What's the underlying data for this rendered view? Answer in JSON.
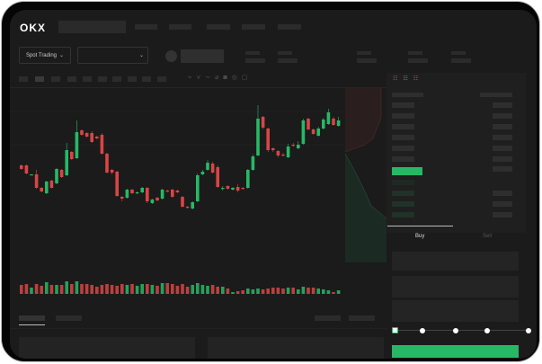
{
  "header": {
    "logo": "OKX"
  },
  "market": {
    "mode_label": "Spot Trading"
  },
  "trade": {
    "buy_tab": "Buy",
    "sell_tab": "Sell"
  },
  "colors": {
    "up": "#27b866",
    "down": "#d94545",
    "background": "#1b1b1b",
    "accent": "#27b866"
  },
  "icons": [
    "chevron-down-icon",
    "orderbook-both-icon",
    "orderbook-bids-icon",
    "orderbook-asks-icon",
    "draw-line-icon",
    "ruler-icon",
    "camera-icon",
    "settings-icon",
    "fullscreen-icon"
  ],
  "chart_data": {
    "type": "candlestick",
    "candles": [
      [
        68,
        64,
        69,
        63
      ],
      [
        68,
        59,
        69,
        58
      ],
      [
        57,
        58,
        58,
        57
      ],
      [
        58,
        43,
        63,
        42
      ],
      [
        43,
        39,
        44,
        38
      ],
      [
        37,
        50,
        51,
        36
      ],
      [
        51,
        43,
        52,
        42
      ],
      [
        48,
        64,
        65,
        47
      ],
      [
        63,
        55,
        64,
        54
      ],
      [
        57,
        85,
        93,
        56
      ],
      [
        83,
        75,
        84,
        74
      ],
      [
        76,
        105,
        118,
        75
      ],
      [
        107,
        102,
        108,
        101
      ],
      [
        104,
        100,
        105,
        99
      ],
      [
        104,
        94,
        106,
        93
      ],
      [
        100,
        98,
        101,
        97
      ],
      [
        102,
        81,
        104,
        80
      ],
      [
        81,
        60,
        82,
        59
      ],
      [
        63,
        60,
        64,
        58
      ],
      [
        61,
        34,
        62,
        33
      ],
      [
        33,
        31,
        34,
        28
      ],
      [
        32,
        41,
        42,
        31
      ],
      [
        41,
        37,
        42,
        36
      ],
      [
        37,
        38,
        39,
        36
      ],
      [
        38,
        43,
        44,
        37
      ],
      [
        43,
        28,
        44,
        26
      ],
      [
        26,
        30,
        31,
        25
      ],
      [
        32,
        29,
        33,
        28
      ],
      [
        31,
        41,
        42,
        30
      ],
      [
        40,
        39,
        41,
        38
      ],
      [
        41,
        33,
        42,
        32
      ],
      [
        40,
        38,
        41,
        37
      ],
      [
        33,
        22,
        34,
        21
      ],
      [
        22,
        21,
        23,
        20
      ],
      [
        20,
        27,
        28,
        19
      ],
      [
        28,
        57,
        59,
        27
      ],
      [
        58,
        61,
        63,
        57
      ],
      [
        63,
        71,
        74,
        62
      ],
      [
        70,
        60,
        72,
        59
      ],
      [
        66,
        44,
        68,
        43
      ],
      [
        42,
        43,
        45,
        40
      ],
      [
        45,
        42,
        46,
        41
      ],
      [
        41,
        43,
        44,
        40
      ],
      [
        44,
        40,
        47,
        38
      ],
      [
        43,
        42,
        44,
        41
      ],
      [
        43,
        63,
        64,
        42
      ],
      [
        63,
        78,
        80,
        62
      ],
      [
        79,
        120,
        135,
        78
      ],
      [
        122,
        110,
        123,
        108
      ],
      [
        109,
        85,
        110,
        83
      ],
      [
        87,
        85,
        88,
        83
      ],
      [
        84,
        79,
        85,
        77
      ],
      [
        80,
        79,
        82,
        78
      ],
      [
        77,
        89,
        92,
        76
      ],
      [
        91,
        90,
        93,
        89
      ],
      [
        87,
        91,
        95,
        86
      ],
      [
        92,
        118,
        120,
        91
      ],
      [
        120,
        108,
        121,
        107
      ],
      [
        108,
        103,
        109,
        102
      ],
      [
        101,
        109,
        111,
        100
      ],
      [
        109,
        119,
        121,
        108
      ],
      [
        114,
        127,
        131,
        113
      ],
      [
        120,
        113,
        122,
        112
      ],
      [
        112,
        118,
        122,
        111
      ]
    ],
    "volumes": [
      10,
      11,
      7,
      11,
      9,
      13,
      10,
      10,
      10,
      14,
      11,
      14,
      11,
      11,
      10,
      8,
      10,
      11,
      10,
      9,
      11,
      10,
      11,
      9,
      11,
      11,
      10,
      9,
      12,
      12,
      11,
      9,
      11,
      8,
      10,
      12,
      10,
      9,
      10,
      8,
      8,
      6,
      2,
      3,
      4,
      6,
      5,
      6,
      5,
      6,
      7,
      7,
      6,
      7,
      7,
      5,
      8,
      7,
      7,
      6,
      5,
      4,
      2,
      4
    ]
  }
}
